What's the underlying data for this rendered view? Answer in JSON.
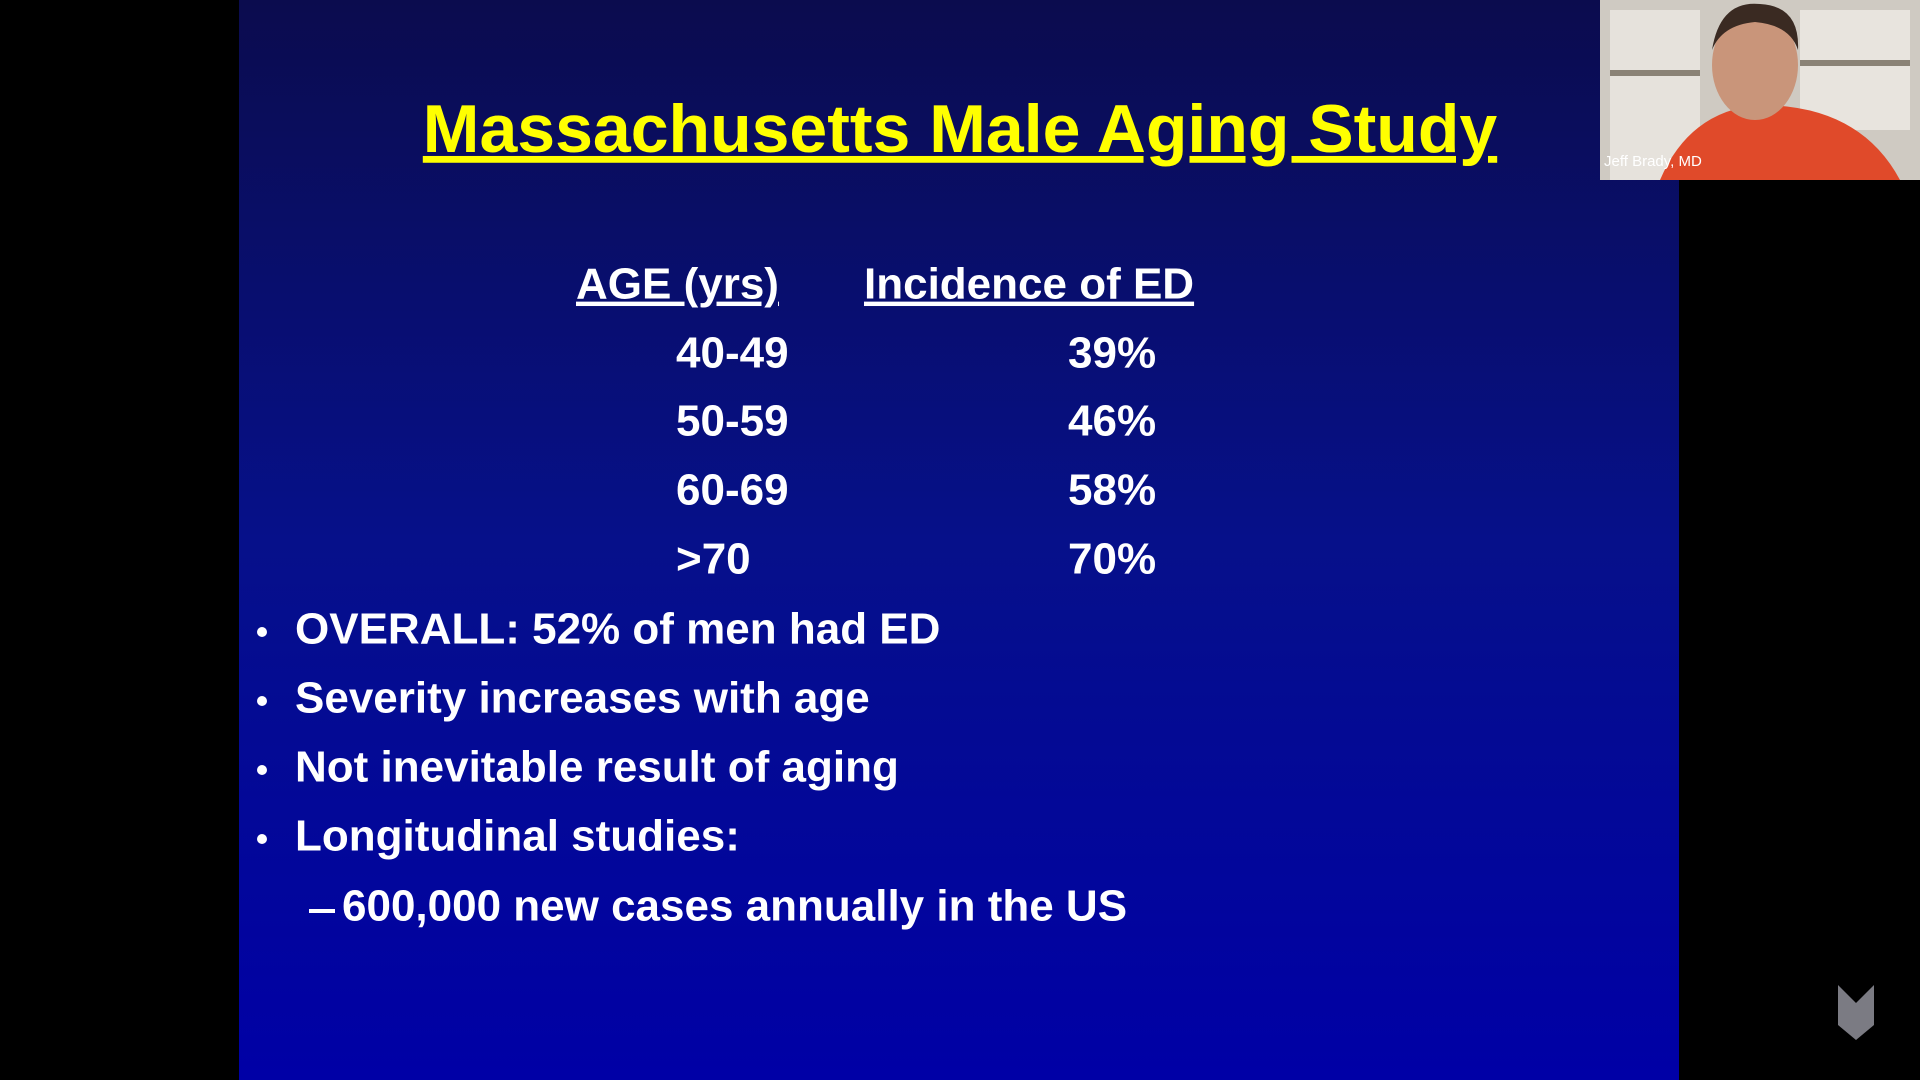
{
  "slide": {
    "title": "Massachusetts Male Aging Study",
    "table": {
      "headers": [
        "AGE (yrs)",
        "Incidence of ED"
      ],
      "rows": [
        [
          "40-49",
          "39%"
        ],
        [
          "50-59",
          "46%"
        ],
        [
          "60-69",
          "58%"
        ],
        [
          ">70",
          "70%"
        ]
      ]
    },
    "bullets": [
      "OVERALL: 52% of men had ED",
      "Severity increases with age",
      "Not inevitable result of aging",
      "Longitudinal studies:"
    ],
    "sub_bullet": "600,000 new cases annually in the US"
  },
  "webcam": {
    "name": "Jeff Brady, MD"
  }
}
